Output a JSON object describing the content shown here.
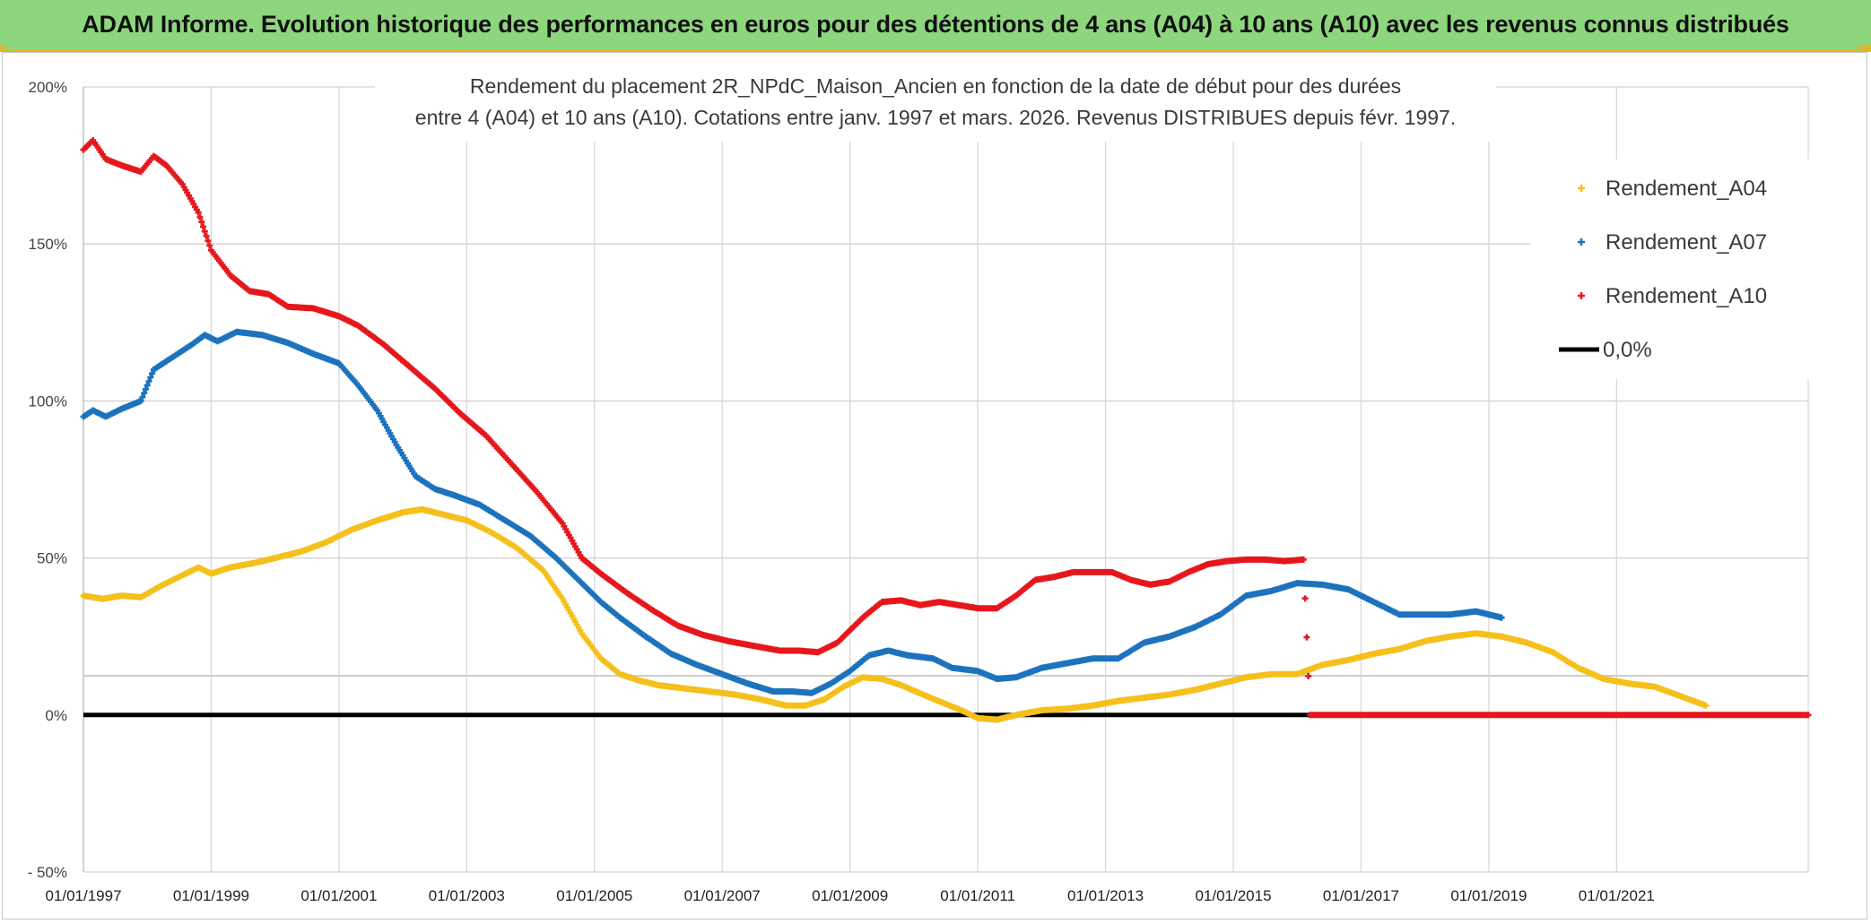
{
  "header": {
    "title": "ADAM Informe. Evolution historique des performances en euros pour des détentions de 4 ans (A04) à 10 ans (A10) avec les revenus connus distribués",
    "background": "#8ed67e",
    "accent": "#d9b928"
  },
  "chart_data": {
    "type": "scatter",
    "title_lines": [
      "Rendement du placement 2R_NPdC_Maison_Ancien en fonction de la date de début pour des durées",
      "entre 4 (A04) et 10 ans (A10). Cotations entre janv. 1997 et mars. 2026. Revenus DISTRIBUES depuis févr. 1997."
    ],
    "xlabel": "",
    "ylabel": "",
    "xlim": [
      1997.0,
      2024.0
    ],
    "ylim": [
      -50,
      200
    ],
    "x_tick_labels": [
      "01/01/1997",
      "01/01/1999",
      "01/01/2001",
      "01/01/2003",
      "01/01/2005",
      "01/01/2007",
      "01/01/2009",
      "01/01/2011",
      "01/01/2013",
      "01/01/2015",
      "01/01/2017",
      "01/01/2019",
      "01/01/2021"
    ],
    "x_tick_values": [
      1997,
      1999,
      2001,
      2003,
      2005,
      2007,
      2009,
      2011,
      2013,
      2015,
      2017,
      2019,
      2021
    ],
    "y_tick_labels": [
      "200%",
      "150%",
      "100%",
      "50%",
      "0%",
      "- 50%"
    ],
    "y_tick_values": [
      200,
      150,
      100,
      50,
      0,
      -50
    ],
    "legend_position": "top-right",
    "series": [
      {
        "name": "Rendement_A04",
        "color": "#f5c01c",
        "marker": "+",
        "x": [
          1997.0,
          1997.3,
          1997.6,
          1997.9,
          1998.2,
          1998.5,
          1998.8,
          1999.0,
          1999.3,
          1999.7,
          2000.0,
          2000.4,
          2000.8,
          2001.2,
          2001.6,
          2002.0,
          2002.3,
          2002.6,
          2003.0,
          2003.4,
          2003.8,
          2004.2,
          2004.5,
          2004.8,
          2005.1,
          2005.4,
          2005.7,
          2006.0,
          2006.4,
          2006.8,
          2007.2,
          2007.6,
          2008.0,
          2008.3,
          2008.6,
          2008.9,
          2009.2,
          2009.5,
          2009.8,
          2010.2,
          2010.5,
          2010.8,
          2011.0,
          2011.3,
          2011.6,
          2012.0,
          2012.4,
          2012.8,
          2013.2,
          2013.6,
          2014.0,
          2014.4,
          2014.8,
          2015.2,
          2015.6,
          2016.0,
          2016.4,
          2016.8,
          2017.2,
          2017.6,
          2018.0,
          2018.4,
          2018.8,
          2019.2,
          2019.6,
          2020.0,
          2020.4,
          2020.8,
          2021.2,
          2021.6,
          2022.0,
          2022.4
        ],
        "values": [
          38,
          37,
          38,
          37.5,
          41,
          44,
          47,
          45,
          47,
          48.5,
          50,
          52,
          55,
          59,
          62,
          64.5,
          65.5,
          64,
          62,
          58,
          53,
          46,
          37,
          26,
          18,
          13,
          11,
          9.5,
          8.5,
          7.5,
          6.5,
          5,
          3,
          3,
          5,
          9,
          12,
          11.5,
          9.5,
          6,
          3.5,
          1,
          -1,
          -1.5,
          0,
          1.5,
          2,
          3,
          4.5,
          5.5,
          6.5,
          8,
          10,
          12,
          13,
          13,
          16,
          17.5,
          19.5,
          21,
          23.5,
          25,
          26,
          25,
          23,
          20,
          15,
          11.5,
          10,
          9,
          6,
          3
        ]
      },
      {
        "name": "Rendement_A07",
        "color": "#1c72bd",
        "marker": "+",
        "x": [
          1997.0,
          1997.15,
          1997.35,
          1997.6,
          1997.9,
          1998.1,
          1998.4,
          1998.7,
          1998.9,
          1999.1,
          1999.4,
          1999.8,
          2000.2,
          2000.6,
          2001.0,
          2001.3,
          2001.6,
          2001.9,
          2002.2,
          2002.5,
          2002.8,
          2003.2,
          2003.6,
          2004.0,
          2004.4,
          2004.8,
          2005.1,
          2005.4,
          2005.8,
          2006.2,
          2006.6,
          2007.0,
          2007.4,
          2007.8,
          2008.1,
          2008.4,
          2008.7,
          2009.0,
          2009.3,
          2009.6,
          2009.9,
          2010.3,
          2010.6,
          2011.0,
          2011.3,
          2011.6,
          2012.0,
          2012.4,
          2012.8,
          2013.2,
          2013.6,
          2014.0,
          2014.4,
          2014.8,
          2015.2,
          2015.6,
          2016.0,
          2016.4,
          2016.8,
          2017.2,
          2017.6,
          2018.0,
          2018.4,
          2018.8,
          2019.0,
          2019.2
        ],
        "values": [
          95,
          97,
          95,
          97.5,
          100,
          110,
          114,
          118,
          121,
          119,
          122,
          121,
          118.5,
          115,
          112,
          105,
          97,
          86,
          76,
          72,
          70,
          67,
          62,
          57,
          50,
          42,
          36,
          31,
          25,
          19.5,
          16,
          13,
          10,
          7.5,
          7.5,
          7,
          10,
          14,
          19,
          20.5,
          19,
          18,
          15,
          14,
          11.5,
          12,
          15,
          16.5,
          18,
          18,
          23,
          25,
          28,
          32,
          38,
          39.5,
          42,
          41.5,
          40,
          36,
          32,
          32,
          32,
          33,
          32,
          31
        ]
      },
      {
        "name": "Rendement_A10",
        "color": "#e6171c",
        "marker": "+",
        "x": [
          1997.0,
          1997.15,
          1997.35,
          1997.6,
          1997.9,
          1998.1,
          1998.3,
          1998.55,
          1998.8,
          1999.0,
          1999.3,
          1999.6,
          1999.9,
          2000.2,
          2000.6,
          2001.0,
          2001.3,
          2001.7,
          2002.1,
          2002.5,
          2002.9,
          2003.3,
          2003.7,
          2004.1,
          2004.5,
          2004.8,
          2005.1,
          2005.5,
          2005.9,
          2006.3,
          2006.7,
          2007.1,
          2007.5,
          2007.9,
          2008.2,
          2008.5,
          2008.8,
          2009.0,
          2009.2,
          2009.5,
          2009.8,
          2010.1,
          2010.4,
          2010.7,
          2011.0,
          2011.3,
          2011.6,
          2011.9,
          2012.2,
          2012.5,
          2012.8,
          2013.1,
          2013.4,
          2013.7,
          2014.0,
          2014.3,
          2014.6,
          2014.9,
          2015.2,
          2015.5,
          2015.8,
          2016.1,
          2016.2,
          2016.5,
          2017.0,
          2018.0,
          2019.0,
          2020.0,
          2021.0,
          2022.0,
          2023.0,
          2024.0
        ],
        "values": [
          180,
          183,
          177,
          175,
          173,
          178,
          175,
          169,
          160,
          148,
          140,
          135,
          134,
          130,
          129.5,
          127,
          124,
          118,
          111,
          104,
          96,
          89,
          80,
          71,
          61,
          50,
          45,
          39,
          33.5,
          28.5,
          25.5,
          23.5,
          22,
          20.5,
          20.5,
          20,
          23,
          27,
          31,
          36,
          36.5,
          35,
          36,
          35,
          34,
          34,
          38,
          43,
          44,
          45.5,
          45.5,
          45.5,
          43,
          41.5,
          42.5,
          45.5,
          48,
          49,
          49.5,
          49.5,
          49,
          49.5,
          0,
          0,
          0,
          0,
          0,
          0,
          0,
          0,
          0,
          0
        ]
      },
      {
        "name": "0,0%",
        "color": "#000000",
        "marker": "line",
        "x": [
          1997.0,
          2024.0
        ],
        "values": [
          0,
          0
        ]
      }
    ]
  }
}
